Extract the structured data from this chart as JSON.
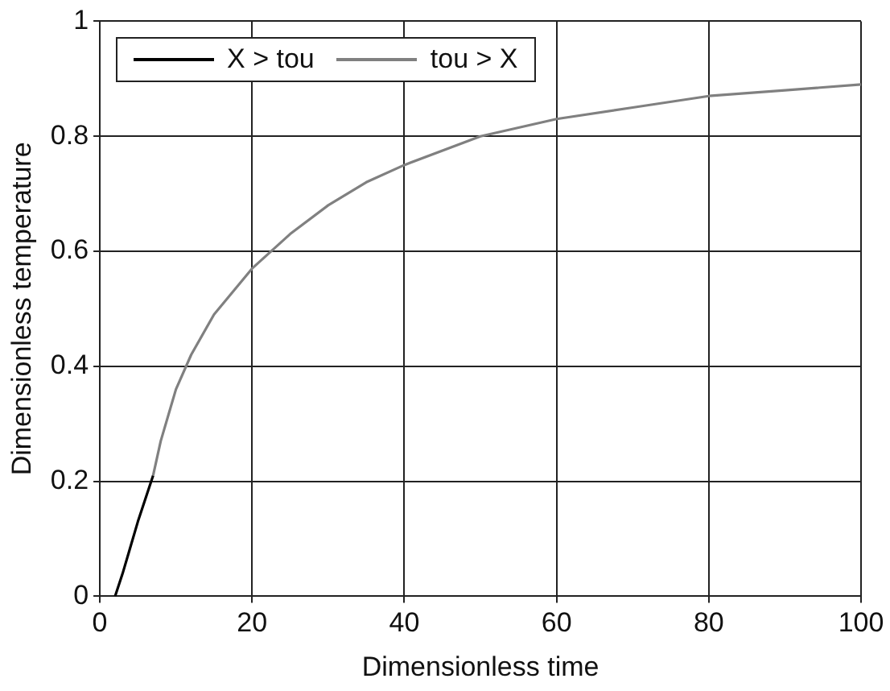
{
  "chart_data": {
    "type": "line",
    "xlabel": "Dimensionless time",
    "ylabel": "Dimensionless temperature",
    "xlim": [
      0,
      100
    ],
    "xticks": [
      0,
      20,
      40,
      60,
      80,
      100
    ],
    "ylim": [
      0,
      1
    ],
    "yticks": [
      0,
      0.2,
      0.4,
      0.6,
      0.8,
      1
    ],
    "grid": true,
    "legend": "top left",
    "marker": "none",
    "line_style": "solid",
    "series": [
      {
        "name": "X > tou",
        "color": "#000000",
        "x": [
          2,
          3,
          4,
          5,
          6,
          7
        ],
        "values": [
          0,
          0.04,
          0.085,
          0.13,
          0.17,
          0.21
        ]
      },
      {
        "name": "tou > X",
        "color": "#808080",
        "x": [
          7,
          8,
          10,
          12,
          15,
          20,
          25,
          30,
          35,
          40,
          50,
          60,
          70,
          80,
          90,
          100
        ],
        "values": [
          0.21,
          0.27,
          0.36,
          0.42,
          0.49,
          0.57,
          0.63,
          0.68,
          0.72,
          0.75,
          0.8,
          0.83,
          0.85,
          0.87,
          0.88,
          0.89
        ]
      }
    ]
  }
}
